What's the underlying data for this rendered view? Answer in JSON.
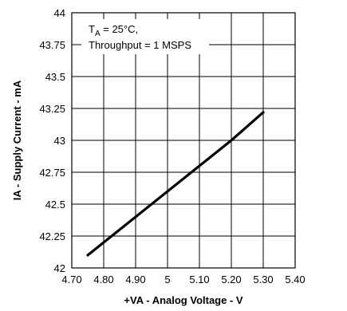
{
  "chart_data": {
    "type": "line",
    "xlabel": "+VA - Analog Voltage - V",
    "ylabel": "IA - Supply Current - mA",
    "xlim": [
      4.7,
      5.4
    ],
    "ylim": [
      42,
      44
    ],
    "x_ticks": [
      4.7,
      4.8,
      4.9,
      5.0,
      5.1,
      5.2,
      5.3,
      5.4
    ],
    "x_tick_labels": [
      "4.70",
      "4.80",
      "4.90",
      "5",
      "5.10",
      "5.20",
      "5.30",
      "5.40"
    ],
    "y_ticks": [
      42,
      42.25,
      42.5,
      42.75,
      43,
      43.25,
      43.5,
      43.75,
      44
    ],
    "y_tick_labels": [
      "42",
      "42.25",
      "42.5",
      "42.75",
      "43",
      "43.25",
      "43.5",
      "43.75",
      "44"
    ],
    "grid": true,
    "annotation": {
      "line1_main": "T",
      "line1_sub": "A",
      "line1_rest": " = 25°C,",
      "line2": "Throughput = 1 MSPS"
    },
    "series": [
      {
        "x": [
          4.75,
          4.8,
          4.85,
          4.9,
          4.95,
          5.0,
          5.05,
          5.1,
          5.15,
          5.2,
          5.25,
          5.3
        ],
        "y": [
          42.1,
          42.2,
          42.3,
          42.4,
          42.5,
          42.6,
          42.7,
          42.8,
          42.9,
          43.0,
          43.11,
          43.22
        ]
      }
    ],
    "line_color": "#000000"
  }
}
